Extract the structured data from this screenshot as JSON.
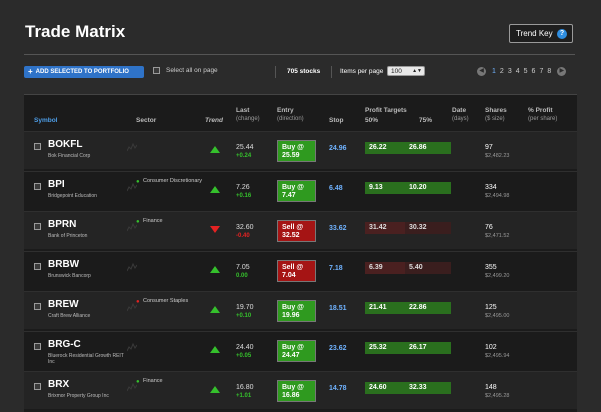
{
  "title": "Trade Matrix",
  "trend_key": {
    "label": "Trend Key",
    "icon": "?"
  },
  "toolbar": {
    "add_label": "ADD SELECTED TO PORTFOLIO",
    "select_all_label": "Select all on page",
    "stock_count": "705 stocks",
    "items_per_page_label": "Items per page",
    "items_per_page_value": "100",
    "pages": [
      "1",
      "2",
      "3",
      "4",
      "5",
      "6",
      "7",
      "8"
    ],
    "current_page": "1"
  },
  "columns": {
    "symbol": "Symbol",
    "sector": "Sector",
    "trend": "Trend",
    "last": "Last",
    "last_sub": "(change)",
    "entry": "Entry",
    "entry_sub": "(direction)",
    "stop": "Stop",
    "profit_targets": "Profit Targets",
    "pt50": "50%",
    "pt75": "75%",
    "date": "Date",
    "date_sub": "(days)",
    "shares": "Shares",
    "shares_sub": "($ size)",
    "pct_profit": "% Profit",
    "pct_profit_sub": "(per share)"
  },
  "rows": [
    {
      "symbol": "BOKFL",
      "company": "Bok Financial Corp",
      "sector": "",
      "sector_color": "",
      "trend": "up",
      "last": "25.44",
      "change": "+0.24",
      "change_dir": "pos",
      "entry": "Buy @ 25.59",
      "entry_type": "buy",
      "stop": "24.96",
      "pt50": "26.22",
      "pt75": "26.86",
      "pt_color": "g",
      "shares": "97",
      "shares_dollars": "$2,482.23"
    },
    {
      "symbol": "BPI",
      "company": "Bridgepoint Education",
      "sector": "Consumer Discretionary",
      "sector_color": "#35c02c",
      "trend": "up",
      "last": "7.26",
      "change": "+0.16",
      "change_dir": "pos",
      "entry": "Buy @ 7.47",
      "entry_type": "buy",
      "stop": "6.48",
      "pt50": "9.13",
      "pt75": "10.20",
      "pt_color": "g",
      "shares": "334",
      "shares_dollars": "$2,494.98"
    },
    {
      "symbol": "BPRN",
      "company": "Bank of Princeton",
      "sector": "Finance",
      "sector_color": "#35c02c",
      "trend": "down",
      "last": "32.60",
      "change": "-0.40",
      "change_dir": "neg",
      "entry": "Sell @ 32.52",
      "entry_type": "sell",
      "stop": "33.62",
      "pt50": "31.42",
      "pt75": "30.32",
      "pt_color": "r",
      "shares": "76",
      "shares_dollars": "$2,471.52"
    },
    {
      "symbol": "BRBW",
      "company": "Brunswick Bancorp",
      "sector": "",
      "sector_color": "",
      "trend": "up",
      "last": "7.05",
      "change": "0.00",
      "change_dir": "pos",
      "entry": "Sell @ 7.04",
      "entry_type": "sell",
      "stop": "7.18",
      "pt50": "6.39",
      "pt75": "5.40",
      "pt_color": "r",
      "shares": "355",
      "shares_dollars": "$2,499.20"
    },
    {
      "symbol": "BREW",
      "company": "Craft Brew Alliance",
      "sector": "Consumer Staples",
      "sector_color": "#e42222",
      "trend": "up",
      "last": "19.70",
      "change": "+0.10",
      "change_dir": "pos",
      "entry": "Buy @ 19.96",
      "entry_type": "buy",
      "stop": "18.51",
      "pt50": "21.41",
      "pt75": "22.86",
      "pt_color": "g",
      "shares": "125",
      "shares_dollars": "$2,495.00"
    },
    {
      "symbol": "BRG-C",
      "company": "Bluerock Residential Growth REIT Inc",
      "sector": "",
      "sector_color": "",
      "trend": "up",
      "last": "24.40",
      "change": "+0.05",
      "change_dir": "pos",
      "entry": "Buy @ 24.47",
      "entry_type": "buy",
      "stop": "23.62",
      "pt50": "25.32",
      "pt75": "26.17",
      "pt_color": "g",
      "shares": "102",
      "shares_dollars": "$2,495.94"
    },
    {
      "symbol": "BRX",
      "company": "Brixmor Property Group Inc",
      "sector": "Finance",
      "sector_color": "#35c02c",
      "trend": "up",
      "last": "16.80",
      "change": "+1.01",
      "change_dir": "pos",
      "entry": "Buy @ 16.86",
      "entry_type": "buy",
      "stop": "14.78",
      "pt50": "24.60",
      "pt75": "32.33",
      "pt_color": "g",
      "shares": "148",
      "shares_dollars": "$2,495.28"
    }
  ]
}
